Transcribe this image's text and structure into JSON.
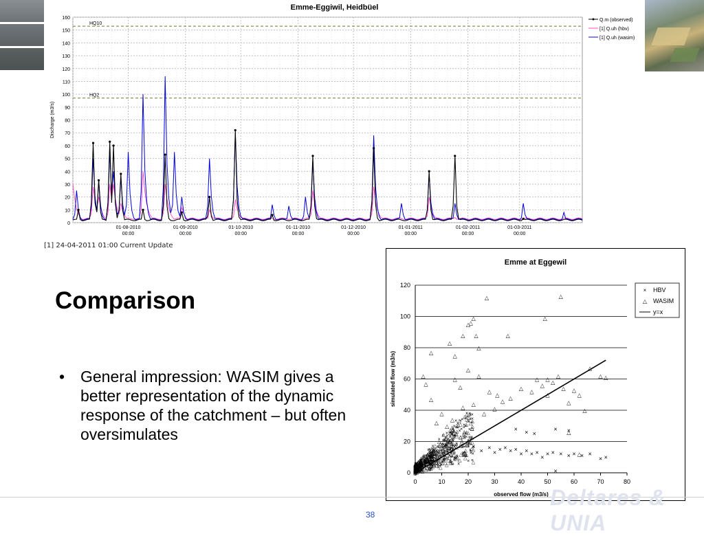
{
  "colors": {
    "observed": "#000000",
    "hbv": "#ff44cc",
    "wasim": "#0000dd",
    "hq_line": "#6b7a2a",
    "grid": "#bfbfbf",
    "page_number": "#2a4dd0",
    "photo_left": [
      "#6e7378",
      "#5d6265",
      "#4c5152"
    ]
  },
  "slide": {
    "heading": "Comparison",
    "bullets": [
      "General impression: WASIM gives a better representation of the dynamic response of the catchment – but often oversimulates"
    ],
    "bullet_symbol": "•",
    "page_number": "38",
    "footer_logo": "Deltares & UNIA"
  },
  "hydrograph": {
    "update_note": "[1] 24-04-2011 01:00 Current Update"
  },
  "chart_data": [
    {
      "type": "line",
      "title": "Emme-Eggiwil, Heidbüel",
      "ylabel": "Discharge (m3/s)",
      "xlabel": "",
      "ylim": [
        0,
        160
      ],
      "yticks": [
        0,
        10,
        20,
        30,
        40,
        50,
        60,
        70,
        80,
        90,
        100,
        110,
        120,
        130,
        140,
        150,
        160
      ],
      "xlim": [
        0,
        276
      ],
      "xticks": [
        {
          "x": 30,
          "label": [
            "01-08-2010",
            "00:00"
          ]
        },
        {
          "x": 61,
          "label": [
            "01-09-2010",
            "00:00"
          ]
        },
        {
          "x": 91,
          "label": [
            "01-10-2010",
            "00:00"
          ]
        },
        {
          "x": 122,
          "label": [
            "01-11-2010",
            "00:00"
          ]
        },
        {
          "x": 152,
          "label": [
            "01-12-2010",
            "00:00"
          ]
        },
        {
          "x": 183,
          "label": [
            "01-01-2011",
            "00:00"
          ]
        },
        {
          "x": 214,
          "label": [
            "01-02-2011",
            "00:00"
          ]
        },
        {
          "x": 242,
          "label": [
            "01-03-2011",
            "00:00"
          ]
        }
      ],
      "x_unit": "days from 01-07-2010",
      "hlines": [
        {
          "label": "HQ10",
          "y": 153
        },
        {
          "label": "HQ2",
          "y": 97
        }
      ],
      "legend_position": "right",
      "grid": true,
      "series": [
        {
          "name": "Q.m (observed)",
          "color_key": "observed",
          "peaks": [
            [
              3,
              10
            ],
            [
              11,
              62
            ],
            [
              14,
              33
            ],
            [
              20,
              63
            ],
            [
              22,
              60
            ],
            [
              26,
              38
            ],
            [
              38,
              10
            ],
            [
              50,
              53
            ],
            [
              59,
              8
            ],
            [
              74,
              20
            ],
            [
              88,
              72
            ],
            [
              108,
              6
            ],
            [
              130,
              52
            ],
            [
              163,
              58
            ],
            [
              193,
              40
            ],
            [
              207,
              52
            ],
            [
              244,
              3
            ]
          ]
        },
        {
          "name": "[1] Q.uh (hbv)",
          "color_key": "hbv",
          "peaks": [
            [
              0,
              30
            ],
            [
              11,
              28
            ],
            [
              14,
              20
            ],
            [
              20,
              30
            ],
            [
              22,
              30
            ],
            [
              26,
              15
            ],
            [
              38,
              40
            ],
            [
              50,
              30
            ],
            [
              59,
              12
            ],
            [
              74,
              10
            ],
            [
              88,
              18
            ],
            [
              130,
              25
            ],
            [
              163,
              28
            ],
            [
              193,
              20
            ],
            [
              207,
              4
            ],
            [
              244,
              2
            ]
          ]
        },
        {
          "name": "[1] Q.uh (wasim)",
          "color_key": "wasim",
          "peaks": [
            [
              2,
              25
            ],
            [
              11,
              50
            ],
            [
              14,
              33
            ],
            [
              20,
              55
            ],
            [
              22,
              40
            ],
            [
              26,
              35
            ],
            [
              30,
              55
            ],
            [
              38,
              100
            ],
            [
              50,
              114
            ],
            [
              55,
              55
            ],
            [
              59,
              20
            ],
            [
              74,
              50
            ],
            [
              88,
              70
            ],
            [
              108,
              14
            ],
            [
              117,
              13
            ],
            [
              126,
              20
            ],
            [
              130,
              48
            ],
            [
              163,
              68
            ],
            [
              178,
              15
            ],
            [
              193,
              38
            ],
            [
              207,
              15
            ],
            [
              244,
              15
            ],
            [
              266,
              8
            ]
          ]
        }
      ]
    },
    {
      "type": "scatter",
      "title": "Emme at Eggewil",
      "xlabel": "observed flow (m3/s)",
      "ylabel": "simulated flow (m3/s)",
      "xlim": [
        0,
        80
      ],
      "ylim": [
        0,
        120
      ],
      "xticks": [
        0,
        10,
        20,
        30,
        40,
        50,
        60,
        70,
        80
      ],
      "yticks": [
        0,
        20,
        40,
        60,
        80,
        100,
        120
      ],
      "legend_position": "top-right",
      "grid": "horizontal",
      "series": [
        {
          "name": "HBV",
          "marker": "×",
          "points": [
            [
              12,
              15
            ],
            [
              18,
              12
            ],
            [
              22,
              17
            ],
            [
              25,
              14
            ],
            [
              28,
              16
            ],
            [
              30,
              13
            ],
            [
              32,
              15
            ],
            [
              34,
              16
            ],
            [
              36,
              14
            ],
            [
              38,
              15
            ],
            [
              40,
              12
            ],
            [
              42,
              14
            ],
            [
              44,
              12
            ],
            [
              46,
              13
            ],
            [
              48,
              10
            ],
            [
              50,
              12
            ],
            [
              52,
              13
            ],
            [
              55,
              12
            ],
            [
              58,
              11
            ],
            [
              60,
              12
            ],
            [
              63,
              11
            ],
            [
              66,
              12
            ],
            [
              70,
              9
            ],
            [
              72,
              10
            ],
            [
              45,
              25
            ],
            [
              53,
              28
            ],
            [
              58,
              27
            ],
            [
              38,
              28
            ],
            [
              42,
              26
            ],
            [
              53,
              1
            ]
          ]
        },
        {
          "name": "WASIM",
          "marker": "△",
          "points": [
            [
              6,
              77
            ],
            [
              13,
              83
            ],
            [
              15,
              75
            ],
            [
              18,
              88
            ],
            [
              20,
              95
            ],
            [
              21,
              96
            ],
            [
              22,
              99
            ],
            [
              23,
              88
            ],
            [
              24,
              80
            ],
            [
              27,
              112
            ],
            [
              35,
              88
            ],
            [
              49,
              99
            ],
            [
              55,
              113
            ],
            [
              15,
              60
            ],
            [
              17,
              55
            ],
            [
              20,
              66
            ],
            [
              24,
              62
            ],
            [
              28,
              52
            ],
            [
              31,
              50
            ],
            [
              33,
              46
            ],
            [
              36,
              48
            ],
            [
              40,
              54
            ],
            [
              44,
              52
            ],
            [
              46,
              60
            ],
            [
              48,
              56
            ],
            [
              50,
              50
            ],
            [
              54,
              62
            ],
            [
              56,
              54
            ],
            [
              58,
              45
            ],
            [
              60,
              53
            ],
            [
              62,
              50
            ],
            [
              64,
              40
            ],
            [
              66,
              67
            ],
            [
              70,
              62
            ],
            [
              72,
              61
            ],
            [
              50,
              60
            ],
            [
              52,
              58
            ],
            [
              58,
              26
            ],
            [
              62,
              12
            ],
            [
              30,
              41
            ],
            [
              26,
              38
            ],
            [
              22,
              44
            ],
            [
              18,
              42
            ],
            [
              14,
              34
            ],
            [
              10,
              38
            ],
            [
              12,
              30
            ],
            [
              8,
              32
            ],
            [
              6,
              47
            ],
            [
              4,
              57
            ],
            [
              3,
              62
            ]
          ]
        },
        {
          "name": "y=x",
          "type": "line",
          "points": [
            [
              0,
              0
            ],
            [
              72,
              72
            ]
          ]
        }
      ]
    }
  ]
}
